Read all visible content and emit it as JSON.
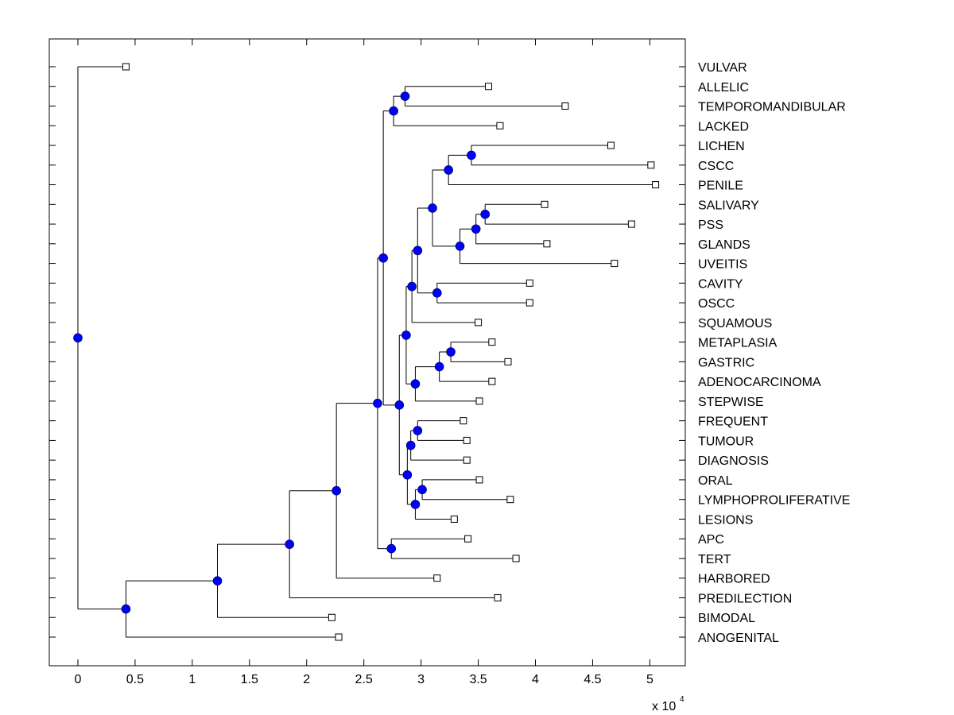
{
  "chart_data": {
    "type": "dendrogram",
    "title": "",
    "xlabel": "",
    "ylabel": "",
    "x_multiplier_label": "x 10",
    "x_multiplier_exponent": "4",
    "xlim": [
      -0.25,
      5.31
    ],
    "xticks": [
      0,
      0.5,
      1,
      1.5,
      2,
      2.5,
      3,
      3.5,
      4,
      4.5,
      5
    ],
    "xtick_labels": [
      "0",
      "0.5",
      "1",
      "1.5",
      "2",
      "2.5",
      "3",
      "3.5",
      "4",
      "4.5",
      "5"
    ],
    "grid": false,
    "node_color": "#0000ff",
    "leaf_marker": "square",
    "node_marker": "circle",
    "leaf_order": [
      "VULVAR",
      "ALLELIC",
      "TEMPOROMANDIBULAR",
      "LACKED",
      "LICHEN",
      "CSCC",
      "PENILE",
      "SALIVARY",
      "PSS",
      "GLANDS",
      "UVEITIS",
      "CAVITY",
      "OSCC",
      "SQUAMOUS",
      "METAPLASIA",
      "GASTRIC",
      "ADENOCARCINOMA",
      "STEPWISE",
      "FREQUENT",
      "TUMOUR",
      "DIAGNOSIS",
      "ORAL",
      "LYMPHOPROLIFERATIVE",
      "LESIONS",
      "APC",
      "TERT",
      "HARBORED",
      "PREDILECTION",
      "BIMODAL",
      "ANOGENITAL"
    ],
    "tree": {
      "x": 0.0,
      "children": [
        {
          "leaf": "VULVAR",
          "x": 0.42
        },
        {
          "x": 0.42,
          "children": [
            {
              "x": 1.22,
              "children": [
                {
                  "x": 1.85,
                  "children": [
                    {
                      "x": 2.26,
                      "children": [
                        {
                          "x": 2.62,
                          "children": [
                            {
                              "x": 2.67,
                              "children": [
                                {
                                  "x": 2.76,
                                  "children": [
                                    {
                                      "x": 2.86,
                                      "children": [
                                        {
                                          "leaf": "ALLELIC",
                                          "x": 3.59
                                        },
                                        {
                                          "leaf": "TEMPOROMANDIBULAR",
                                          "x": 4.26
                                        }
                                      ]
                                    },
                                    {
                                      "leaf": "LACKED",
                                      "x": 3.69
                                    }
                                  ]
                                },
                                {
                                  "x": 2.81,
                                  "children": [
                                    {
                                      "x": 2.87,
                                      "children": [
                                        {
                                          "x": 2.92,
                                          "children": [
                                            {
                                              "x": 2.97,
                                              "children": [
                                                {
                                                  "x": 3.1,
                                                  "children": [
                                                    {
                                                      "x": 3.24,
                                                      "children": [
                                                        {
                                                          "x": 3.44,
                                                          "children": [
                                                            {
                                                              "leaf": "LICHEN",
                                                              "x": 4.66
                                                            },
                                                            {
                                                              "leaf": "CSCC",
                                                              "x": 5.01
                                                            }
                                                          ]
                                                        },
                                                        {
                                                          "leaf": "PENILE",
                                                          "x": 5.05
                                                        }
                                                      ]
                                                    },
                                                    {
                                                      "x": 3.34,
                                                      "children": [
                                                        {
                                                          "x": 3.48,
                                                          "children": [
                                                            {
                                                              "x": 3.56,
                                                              "children": [
                                                                {
                                                                  "leaf": "SALIVARY",
                                                                  "x": 4.08
                                                                },
                                                                {
                                                                  "leaf": "PSS",
                                                                  "x": 4.84
                                                                }
                                                              ]
                                                            },
                                                            {
                                                              "leaf": "GLANDS",
                                                              "x": 4.1
                                                            }
                                                          ]
                                                        },
                                                        {
                                                          "leaf": "UVEITIS",
                                                          "x": 4.69
                                                        }
                                                      ]
                                                    }
                                                  ]
                                                },
                                                {
                                                  "x": 3.14,
                                                  "children": [
                                                    {
                                                      "leaf": "CAVITY",
                                                      "x": 3.95
                                                    },
                                                    {
                                                      "leaf": "OSCC",
                                                      "x": 3.95
                                                    }
                                                  ]
                                                }
                                              ]
                                            },
                                            {
                                              "leaf": "SQUAMOUS",
                                              "x": 3.5
                                            }
                                          ]
                                        },
                                        {
                                          "x": 2.95,
                                          "children": [
                                            {
                                              "x": 3.16,
                                              "children": [
                                                {
                                                  "x": 3.26,
                                                  "children": [
                                                    {
                                                      "leaf": "METAPLASIA",
                                                      "x": 3.62
                                                    },
                                                    {
                                                      "leaf": "GASTRIC",
                                                      "x": 3.76
                                                    }
                                                  ]
                                                },
                                                {
                                                  "leaf": "ADENOCARCINOMA",
                                                  "x": 3.62
                                                }
                                              ]
                                            },
                                            {
                                              "leaf": "STEPWISE",
                                              "x": 3.51
                                            }
                                          ]
                                        }
                                      ]
                                    },
                                    {
                                      "x": 2.88,
                                      "children": [
                                        {
                                          "x": 2.91,
                                          "children": [
                                            {
                                              "x": 2.97,
                                              "children": [
                                                {
                                                  "leaf": "FREQUENT",
                                                  "x": 3.37
                                                },
                                                {
                                                  "leaf": "TUMOUR",
                                                  "x": 3.4
                                                }
                                              ]
                                            },
                                            {
                                              "leaf": "DIAGNOSIS",
                                              "x": 3.4
                                            }
                                          ]
                                        },
                                        {
                                          "x": 2.95,
                                          "children": [
                                            {
                                              "x": 3.01,
                                              "children": [
                                                {
                                                  "leaf": "ORAL",
                                                  "x": 3.51
                                                },
                                                {
                                                  "leaf": "LYMPHOPROLIFERATIVE",
                                                  "x": 3.78
                                                }
                                              ]
                                            },
                                            {
                                              "leaf": "LESIONS",
                                              "x": 3.29
                                            }
                                          ]
                                        }
                                      ]
                                    }
                                  ]
                                }
                              ]
                            },
                            {
                              "x": 2.74,
                              "children": [
                                {
                                  "leaf": "APC",
                                  "x": 3.41
                                },
                                {
                                  "leaf": "TERT",
                                  "x": 3.83
                                }
                              ]
                            }
                          ]
                        },
                        {
                          "leaf": "HARBORED",
                          "x": 3.14
                        }
                      ]
                    },
                    {
                      "leaf": "PREDILECTION",
                      "x": 3.67
                    }
                  ]
                },
                {
                  "leaf": "BIMODAL",
                  "x": 2.22
                }
              ]
            },
            {
              "leaf": "ANOGENITAL",
              "x": 2.28
            }
          ]
        }
      ]
    }
  }
}
